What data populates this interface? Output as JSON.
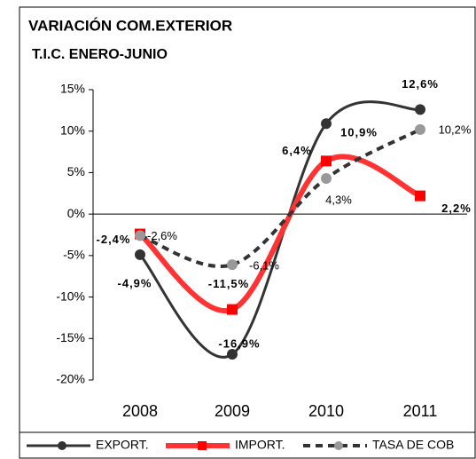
{
  "chart_data": {
    "type": "line",
    "title": "VARIACIÓN COM.EXTERIOR",
    "subtitle": "T.I.C.  ENERO-JUNIO",
    "categories": [
      "2008",
      "2009",
      "2010",
      "2011"
    ],
    "ylim": [
      -20,
      15
    ],
    "yticks": [
      {
        "value": -20,
        "label": "-20%"
      },
      {
        "value": -15,
        "label": "-15%"
      },
      {
        "value": -10,
        "label": "-10%"
      },
      {
        "value": -5,
        "label": "-5%"
      },
      {
        "value": 0,
        "label": "0%"
      },
      {
        "value": 5,
        "label": "5%"
      },
      {
        "value": 10,
        "label": "10%"
      },
      {
        "value": 15,
        "label": "15%"
      }
    ],
    "grid": false,
    "legend": "bottom",
    "series": [
      {
        "name": "EXPORT.",
        "color": "#333333",
        "values": [
          -4.9,
          -16.9,
          10.9,
          12.6
        ],
        "value_labels": [
          "-4,9%",
          "-16,9%",
          "10,9%",
          "12,6%"
        ]
      },
      {
        "name": "IMPORT.",
        "color": "#ff3333",
        "values": [
          -2.4,
          -11.5,
          6.4,
          2.2
        ],
        "value_labels": [
          "-2,4%",
          "-11,5%",
          "6,4%",
          "2,2%"
        ]
      },
      {
        "name": "TASA DE COB",
        "color": "#333333",
        "values": [
          -2.6,
          -6.1,
          4.3,
          10.2
        ],
        "value_labels": [
          "-2,6%",
          "-6,1%",
          "4,3%",
          "10,2%"
        ]
      }
    ]
  }
}
